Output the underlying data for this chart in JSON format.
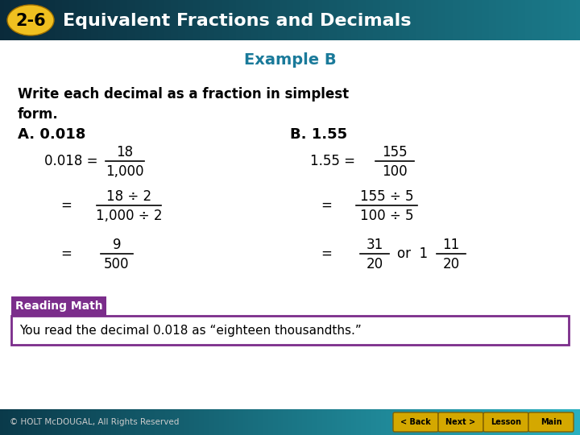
{
  "header_bg_left": "#0a2a3a",
  "header_bg_right": "#1a7a8a",
  "header_label": "2-6",
  "header_label_bg": "#f0c020",
  "header_label_color": "#000000",
  "header_title": "Equivalent Fractions and Decimals",
  "header_title_color": "#ffffff",
  "slide_bg": "#ffffff",
  "example_title": "Example B",
  "example_title_color": "#1a7a9a",
  "instruction": "Write each decimal as a fraction in simplest\nform.",
  "instruction_color": "#000000",
  "part_a_label": "A. 0.018",
  "part_b_label": "B. 1.55",
  "part_color": "#000000",
  "reading_math_bg": "#7B2D8B",
  "reading_math_text": "Reading Math",
  "reading_math_color": "#ffffff",
  "reading_note_bg": "#ffffff",
  "reading_note_border": "#7B2D8B",
  "reading_note": "You read the decimal 0.018 as “eighteen thousandths.”",
  "footer_bg_left": "#0a3a4a",
  "footer_bg_right": "#2ab0c0",
  "footer_color": "#cccccc",
  "footer_text": "© HOLT McDOUGAL, All Rights Reserved",
  "nav_btn_color": "#d4a800",
  "nav_btns": [
    "< Back",
    "Next >",
    "Lesson",
    "Main"
  ]
}
